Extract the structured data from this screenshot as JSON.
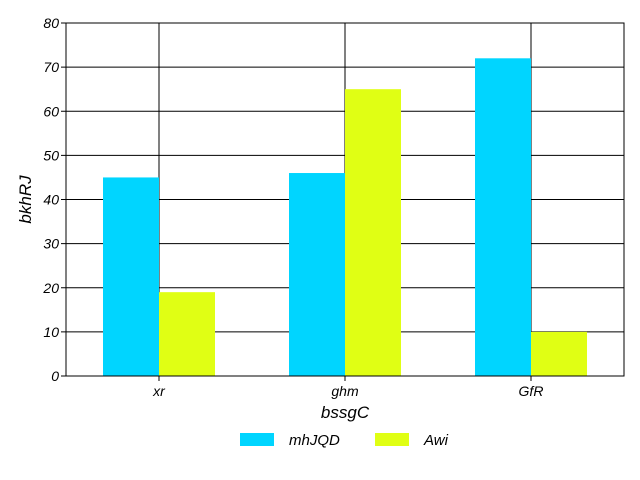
{
  "chart_data": {
    "type": "bar",
    "categories": [
      "xr",
      "ghm",
      "GfR"
    ],
    "series": [
      {
        "name": "mhJQD",
        "color": "#00d5ff",
        "values": [
          45,
          46,
          72
        ]
      },
      {
        "name": "Awi",
        "color": "#e0ff14",
        "values": [
          19,
          65,
          10
        ]
      }
    ],
    "xlabel": "bssgC",
    "ylabel": "bkhRJ",
    "ylim": [
      0,
      80
    ],
    "yticks": [
      0,
      10,
      20,
      30,
      40,
      50,
      60,
      70,
      80
    ],
    "grid": true,
    "legend": "bottom-center"
  }
}
